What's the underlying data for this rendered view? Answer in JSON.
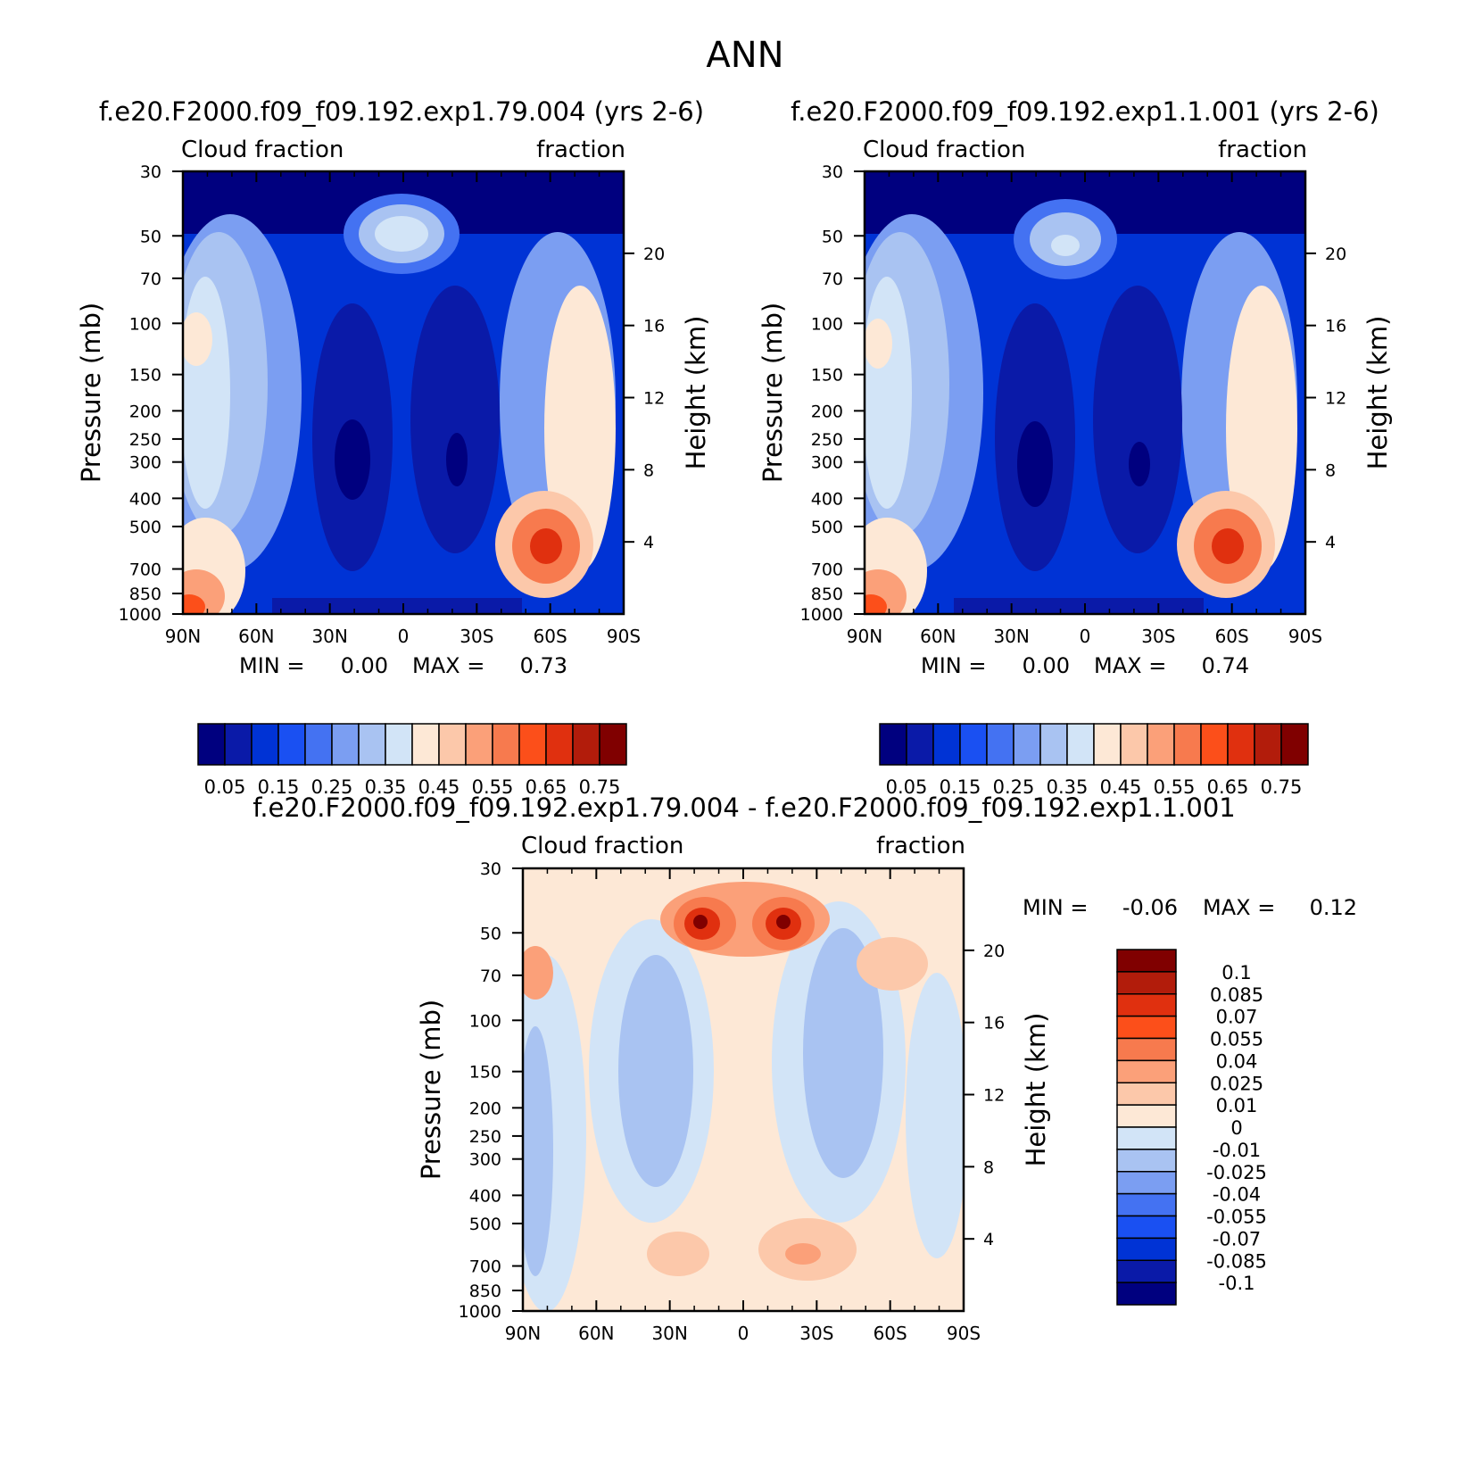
{
  "page": {
    "title": "ANN"
  },
  "colors": {
    "abs_levels": [
      "#00007f",
      "#0a1aa8",
      "#0033d5",
      "#1a50f2",
      "#4472f2",
      "#7b9ef2",
      "#a9c3f2",
      "#d2e4f7",
      "#fde8d6",
      "#fcc8aa",
      "#fba079",
      "#f77a4e",
      "#fc4f1a",
      "#e0300f",
      "#b21c0b",
      "#800000"
    ],
    "diff_levels": [
      "#00007f",
      "#0a1aa8",
      "#0033d5",
      "#1a50f2",
      "#4472f2",
      "#7b9ef2",
      "#a9c3f2",
      "#d2e4f7",
      "#fde8d6",
      "#fcc8aa",
      "#fba079",
      "#f77a4e",
      "#fc4f1a",
      "#e0300f",
      "#b21c0b",
      "#800000"
    ]
  },
  "chart_data": [
    {
      "type": "heatmap",
      "title": "f.e20.F2000.f09_f09.192.exp1.79.004 (yrs 2-6)",
      "left_label": "Cloud fraction",
      "right_label": "fraction",
      "xlabel": "",
      "ylabel": "Pressure (mb)",
      "y2label": "Height (km)",
      "x_ticks": [
        "90N",
        "60N",
        "30N",
        "0",
        "30S",
        "60S",
        "90S"
      ],
      "y_ticks": [
        30,
        50,
        70,
        100,
        150,
        200,
        250,
        300,
        400,
        500,
        700,
        850,
        1000
      ],
      "y2_ticks": [
        20,
        16,
        12,
        8,
        4
      ],
      "min_label": "MIN =",
      "min_value": "0.00",
      "max_label": "MAX =",
      "max_value": "0.73",
      "colorbar_labels": [
        "0.05",
        "0.15",
        "0.25",
        "0.35",
        "0.45",
        "0.55",
        "0.65",
        "0.75"
      ],
      "ylim": [
        1000,
        30
      ],
      "xlim": [
        90,
        -90
      ]
    },
    {
      "type": "heatmap",
      "title": "f.e20.F2000.f09_f09.192.exp1.1.001 (yrs 2-6)",
      "left_label": "Cloud fraction",
      "right_label": "fraction",
      "xlabel": "",
      "ylabel": "Pressure (mb)",
      "y2label": "Height (km)",
      "x_ticks": [
        "90N",
        "60N",
        "30N",
        "0",
        "30S",
        "60S",
        "90S"
      ],
      "y_ticks": [
        30,
        50,
        70,
        100,
        150,
        200,
        250,
        300,
        400,
        500,
        700,
        850,
        1000
      ],
      "y2_ticks": [
        20,
        16,
        12,
        8,
        4
      ],
      "min_label": "MIN =",
      "min_value": "0.00",
      "max_label": "MAX =",
      "max_value": "0.74",
      "colorbar_labels": [
        "0.05",
        "0.15",
        "0.25",
        "0.35",
        "0.45",
        "0.55",
        "0.65",
        "0.75"
      ],
      "ylim": [
        1000,
        30
      ],
      "xlim": [
        90,
        -90
      ]
    },
    {
      "type": "heatmap",
      "title": "f.e20.F2000.f09_f09.192.exp1.79.004 - f.e20.F2000.f09_f09.192.exp1.1.001",
      "left_label": "Cloud fraction",
      "right_label": "fraction",
      "xlabel": "",
      "ylabel": "Pressure (mb)",
      "y2label": "Height (km)",
      "x_ticks": [
        "90N",
        "60N",
        "30N",
        "0",
        "30S",
        "60S",
        "90S"
      ],
      "y_ticks": [
        30,
        50,
        70,
        100,
        150,
        200,
        250,
        300,
        400,
        500,
        700,
        850,
        1000
      ],
      "y2_ticks": [
        20,
        16,
        12,
        8,
        4
      ],
      "min_label": "MIN =",
      "min_value": "-0.06",
      "max_label": "MAX =",
      "max_value": "0.12",
      "colorbar_labels": [
        "0.1",
        "0.085",
        "0.07",
        "0.055",
        "0.04",
        "0.025",
        "0.01",
        "0",
        "-0.01",
        "-0.025",
        "-0.04",
        "-0.055",
        "-0.07",
        "-0.085",
        "-0.1"
      ],
      "ylim": [
        1000,
        30
      ],
      "xlim": [
        90,
        -90
      ]
    }
  ]
}
